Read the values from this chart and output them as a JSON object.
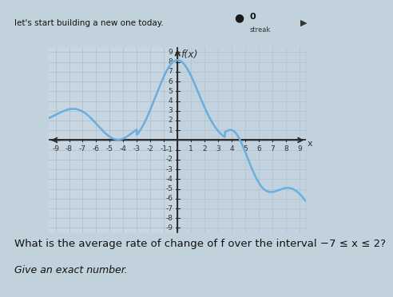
{
  "title": "f(x)",
  "xlabel": "x",
  "xlim": [
    -9.5,
    9.5
  ],
  "ylim": [
    -9.5,
    9.5
  ],
  "xticks": [
    -9,
    -8,
    -7,
    -6,
    -5,
    -4,
    -3,
    -2,
    -1,
    1,
    2,
    3,
    4,
    5,
    6,
    7,
    8,
    9
  ],
  "yticks": [
    -9,
    -8,
    -7,
    -6,
    -5,
    -4,
    -3,
    -2,
    -1,
    1,
    2,
    3,
    4,
    5,
    6,
    7,
    8,
    9
  ],
  "curve_color": "#6aaedd",
  "bg_color_left": "#c8d8e4",
  "bg_color_right": "#c8d8e8",
  "grid_color": "#a8bfcc",
  "axes_color": "#2a2a2a",
  "text_question": "What is the average rate of change of f over the interval −7 ≤ x ≤ 2?",
  "text_sub": "Give an exact number.",
  "text_top": "let's start building a new one today.",
  "streak_label": "0",
  "streak_word": "streak",
  "label_color": "#333333",
  "tick_fontsize": 6.5,
  "title_fontsize": 9,
  "question_fontsize": 9.5,
  "sub_fontsize": 9
}
